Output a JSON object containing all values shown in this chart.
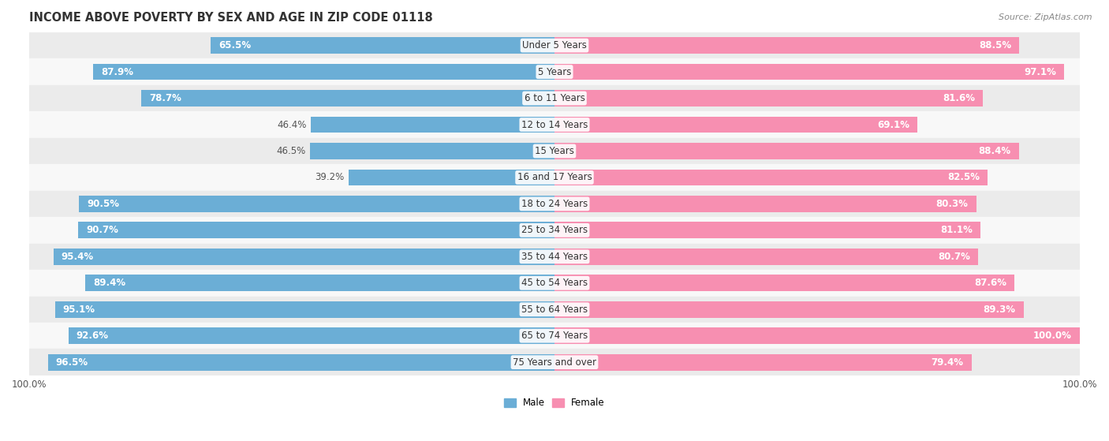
{
  "title": "INCOME ABOVE POVERTY BY SEX AND AGE IN ZIP CODE 01118",
  "source": "Source: ZipAtlas.com",
  "categories": [
    "Under 5 Years",
    "5 Years",
    "6 to 11 Years",
    "12 to 14 Years",
    "15 Years",
    "16 and 17 Years",
    "18 to 24 Years",
    "25 to 34 Years",
    "35 to 44 Years",
    "45 to 54 Years",
    "55 to 64 Years",
    "65 to 74 Years",
    "75 Years and over"
  ],
  "male_values": [
    65.5,
    87.9,
    78.7,
    46.4,
    46.5,
    39.2,
    90.5,
    90.7,
    95.4,
    89.4,
    95.1,
    92.6,
    96.5
  ],
  "female_values": [
    88.5,
    97.1,
    81.6,
    69.1,
    88.4,
    82.5,
    80.3,
    81.1,
    80.7,
    87.6,
    89.3,
    100.0,
    79.4
  ],
  "male_color": "#6baed6",
  "female_color": "#f78fb1",
  "bg_row_odd": "#ebebeb",
  "bg_row_even": "#f8f8f8",
  "bar_height": 0.62,
  "legend_male_label": "Male",
  "legend_female_label": "Female",
  "title_fontsize": 10.5,
  "label_fontsize": 8.5,
  "tick_fontsize": 8.5,
  "source_fontsize": 8
}
